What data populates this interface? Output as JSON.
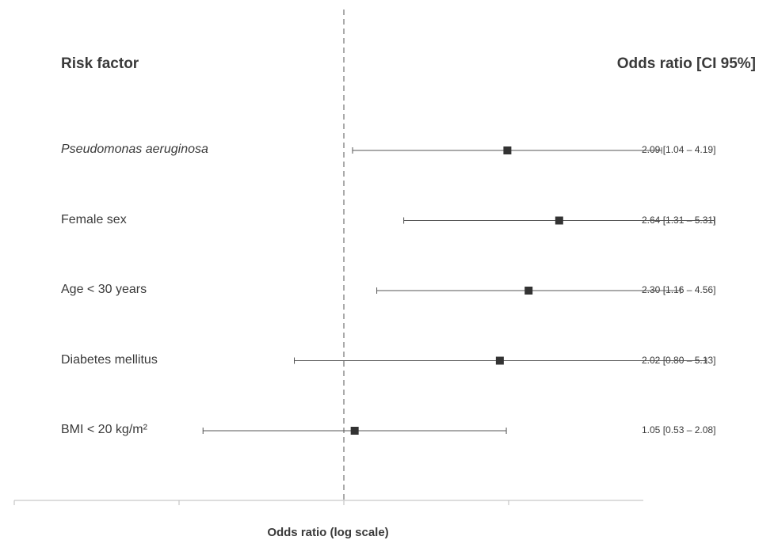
{
  "chart_data": {
    "type": "forest",
    "headers": {
      "left": "Risk factor",
      "right": "Odds ratio [CI 95%]"
    },
    "xlabel": "Odds ratio (log scale)",
    "reference_line": 1,
    "x_scale": "log",
    "rows": [
      {
        "label": "Pseudomonas aeruginosa",
        "italic": true,
        "or": 2.09,
        "lo": 1.04,
        "hi": 4.19,
        "text": "2.09 [1.04 – 4.19]"
      },
      {
        "label": "Female sex",
        "italic": false,
        "or": 2.64,
        "lo": 1.31,
        "hi": 5.31,
        "text": "2.64 [1.31 – 5.31]"
      },
      {
        "label": "Age < 30 years",
        "italic": false,
        "or": 2.3,
        "lo": 1.16,
        "hi": 4.56,
        "text": "2.30 [1.16 – 4.56]"
      },
      {
        "label": "Diabetes mellitus",
        "italic": false,
        "or": 2.02,
        "lo": 0.8,
        "hi": 5.13,
        "text": "2.02 [0.80 – 5.13]"
      },
      {
        "label": "BMI < 20 kg/m²",
        "italic": false,
        "or": 1.05,
        "lo": 0.53,
        "hi": 2.08,
        "text": "1.05 [0.53 – 2.08]"
      }
    ],
    "colors": {
      "marker": "#333333",
      "whisker": "#555555",
      "refline": "#aaaaaa",
      "axis": "#bbbbbb"
    }
  }
}
